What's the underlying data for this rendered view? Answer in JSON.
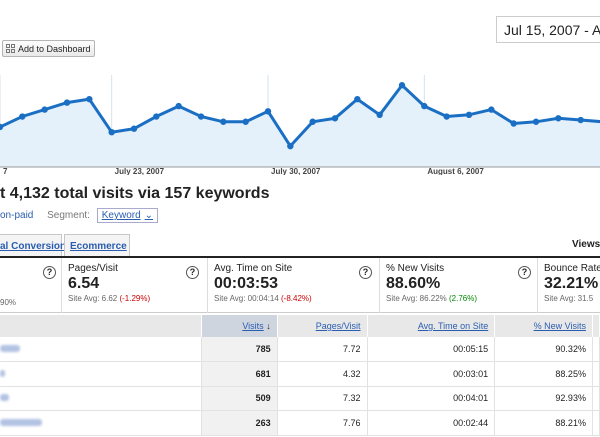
{
  "header": {
    "add_dashboard": "Add to Dashboard",
    "date_range": "Jul 15, 2007 - A"
  },
  "chart_data": {
    "type": "line",
    "x_labels": [
      "7",
      "July 23, 2007",
      "July 30, 2007",
      "August 6, 2007"
    ],
    "values": [
      103,
      109,
      113,
      117,
      119,
      100,
      102,
      109,
      115,
      109,
      106,
      106,
      112,
      92,
      106,
      108,
      119,
      110,
      127,
      115,
      109,
      110,
      113,
      105,
      106,
      108,
      107,
      106
    ],
    "line_color": "#1a6fc4",
    "fill_color": "#e4f0fa"
  },
  "summary": {
    "text": "t 4,132 total visits via 157 keywords"
  },
  "segment": {
    "left_link": "on-paid",
    "label": "Segment:",
    "value": "Keyword"
  },
  "tabs": {
    "goal": "al Conversion",
    "ecommerce": "Ecommerce",
    "views": "Views"
  },
  "scorecards": [
    {
      "title": "",
      "value": "",
      "sub": "90%"
    },
    {
      "title": "Pages/Visit",
      "value": "6.54",
      "sub_prefix": "Site Avg: 6.62 ",
      "sub_delta": "(-1.29%)"
    },
    {
      "title": "Avg. Time on Site",
      "value": "00:03:53",
      "sub_prefix": "Site Avg: 00:04:14 ",
      "sub_delta": "(-8.42%)"
    },
    {
      "title": "% New Visits",
      "value": "88.60%",
      "sub_prefix": "Site Avg: 86.22% ",
      "sub_delta": "(2.76%)"
    },
    {
      "title": "Bounce Rate",
      "value": "32.21%",
      "sub_prefix": "Site Avg: 31.5"
    }
  ],
  "table": {
    "headers": [
      "Visits",
      "Pages/Visit",
      "Avg. Time on Site",
      "% New Visits"
    ],
    "sort_arrow": "↓",
    "rows": [
      {
        "visits": "785",
        "ppv": "7.72",
        "time": "00:05:15",
        "new": "90.32%"
      },
      {
        "visits": "681",
        "ppv": "4.32",
        "time": "00:03:01",
        "new": "88.25%"
      },
      {
        "visits": "509",
        "ppv": "7.32",
        "time": "00:04:01",
        "new": "92.93%"
      },
      {
        "visits": "263",
        "ppv": "7.76",
        "time": "00:02:44",
        "new": "88.21%"
      }
    ]
  },
  "help_glyph": "?"
}
